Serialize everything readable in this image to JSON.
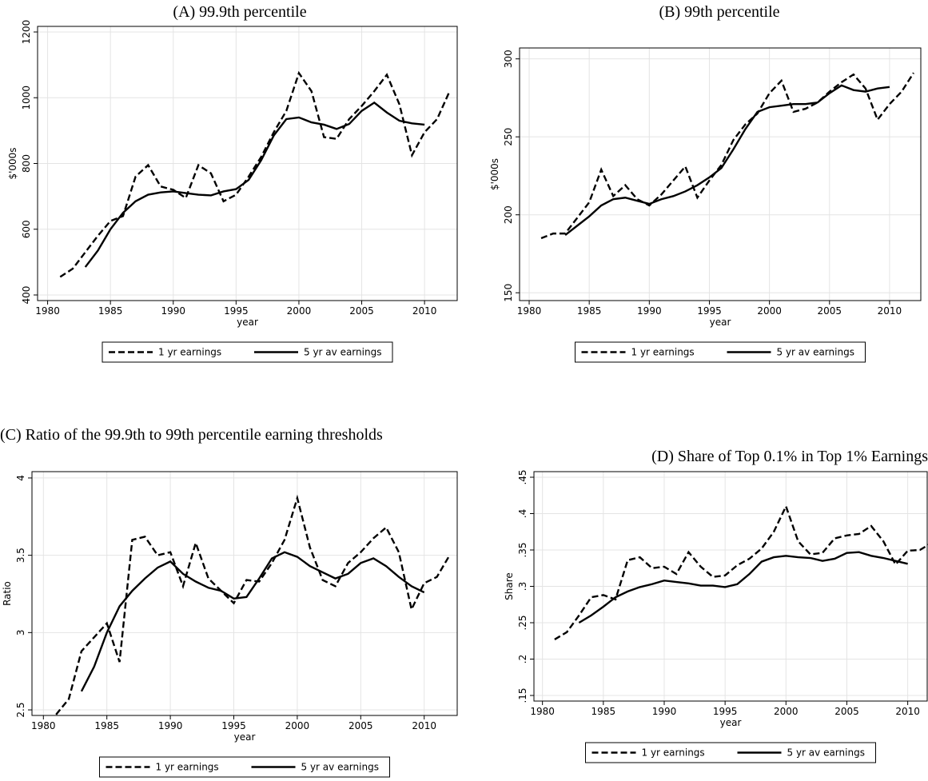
{
  "chart_data": [
    {
      "type": "line",
      "title": "(A) 99.9th percentile",
      "ylabel": "$'000s",
      "xlabel": "year",
      "x": [
        1981,
        1982,
        1983,
        1984,
        1985,
        1986,
        1987,
        1988,
        1989,
        1990,
        1991,
        1992,
        1993,
        1994,
        1995,
        1996,
        1997,
        1998,
        1999,
        2000,
        2001,
        2002,
        2003,
        2004,
        2005,
        2006,
        2007,
        2008,
        2009,
        2010,
        2011,
        2012
      ],
      "series": [
        {
          "name": "1 yr earnings",
          "color": "#000000",
          "style": "dashed",
          "values": [
            455,
            480,
            530,
            580,
            625,
            640,
            760,
            795,
            730,
            720,
            695,
            795,
            770,
            685,
            705,
            760,
            820,
            895,
            960,
            1075,
            1020,
            880,
            875,
            935,
            975,
            1020,
            1070,
            980,
            825,
            895,
            935,
            1020
          ]
        },
        {
          "name": "5 yr av earnings",
          "color": "#000000",
          "style": "solid",
          "values": [
            null,
            null,
            485,
            535,
            600,
            650,
            685,
            705,
            712,
            715,
            710,
            705,
            703,
            715,
            722,
            750,
            810,
            885,
            935,
            940,
            925,
            918,
            905,
            920,
            960,
            985,
            955,
            930,
            922,
            918,
            null,
            null
          ]
        }
      ],
      "xlim": [
        1979.2,
        2012.6
      ],
      "xticks": [
        1980,
        1985,
        1990,
        1995,
        2000,
        2005,
        2010
      ],
      "ylim": [
        383,
        1217
      ],
      "yticks": [
        400,
        600,
        800,
        1000,
        1200
      ],
      "grid": true
    },
    {
      "type": "line",
      "title": "(B) 99th percentile",
      "ylabel": "$'000s",
      "xlabel": "year",
      "x": [
        1981,
        1982,
        1983,
        1984,
        1985,
        1986,
        1987,
        1988,
        1989,
        1990,
        1991,
        1992,
        1993,
        1994,
        1995,
        1996,
        1997,
        1998,
        1999,
        2000,
        2001,
        2002,
        2003,
        2004,
        2005,
        2006,
        2007,
        2008,
        2009,
        2010,
        2011,
        2012
      ],
      "series": [
        {
          "name": "1 yr earnings",
          "color": "#000000",
          "style": "dashed",
          "values": [
            185,
            188,
            188,
            198,
            208,
            229,
            212,
            219,
            210,
            206,
            213,
            222,
            231,
            211,
            222,
            232,
            248,
            258,
            265,
            278,
            286,
            266,
            268,
            272,
            279,
            285,
            290,
            281,
            261,
            271,
            279,
            291
          ]
        },
        {
          "name": "5 yr av earnings",
          "color": "#000000",
          "style": "solid",
          "values": [
            null,
            null,
            187,
            193,
            199,
            206,
            210,
            211,
            209,
            207,
            210,
            212,
            215,
            219,
            224,
            230,
            242,
            255,
            266,
            269,
            270,
            271,
            271,
            272,
            278,
            283,
            280,
            279,
            281,
            282,
            null,
            null
          ]
        }
      ],
      "xlim": [
        1979.2,
        2012.6
      ],
      "xticks": [
        1980,
        1985,
        1990,
        1995,
        2000,
        2005,
        2010
      ],
      "ylim": [
        145,
        307
      ],
      "yticks": [
        150,
        200,
        250,
        300
      ],
      "grid": true
    },
    {
      "type": "line",
      "title": "(C) Ratio of the 99.9th to 99th percentile earning thresholds",
      "ylabel": "Ratio",
      "xlabel": "year",
      "x": [
        1981,
        1982,
        1983,
        1984,
        1985,
        1986,
        1987,
        1988,
        1989,
        1990,
        1991,
        1992,
        1993,
        1994,
        1995,
        1996,
        1997,
        1998,
        1999,
        2000,
        2001,
        2002,
        2003,
        2004,
        2005,
        2006,
        2007,
        2008,
        2009,
        2010,
        2011,
        2012
      ],
      "series": [
        {
          "name": "1 yr earnings",
          "color": "#000000",
          "style": "dashed",
          "values": [
            2.47,
            2.57,
            2.88,
            2.97,
            3.06,
            2.81,
            3.6,
            3.62,
            3.5,
            3.52,
            3.3,
            3.58,
            3.35,
            3.27,
            3.19,
            3.34,
            3.33,
            3.45,
            3.6,
            3.87,
            3.55,
            3.34,
            3.3,
            3.45,
            3.52,
            3.61,
            3.68,
            3.52,
            3.15,
            3.32,
            3.36,
            3.5
          ]
        },
        {
          "name": "5 yr av earnings",
          "color": "#000000",
          "style": "solid",
          "values": [
            null,
            null,
            2.62,
            2.78,
            3.0,
            3.17,
            3.27,
            3.35,
            3.42,
            3.46,
            3.38,
            3.33,
            3.29,
            3.27,
            3.22,
            3.23,
            3.35,
            3.48,
            3.52,
            3.49,
            3.43,
            3.39,
            3.35,
            3.38,
            3.45,
            3.48,
            3.43,
            3.36,
            3.3,
            3.26,
            null,
            null
          ]
        }
      ],
      "xlim": [
        1979.1,
        2012.6
      ],
      "xticks": [
        1980,
        1985,
        1990,
        1995,
        2000,
        2005,
        2010
      ],
      "ylim": [
        2.464,
        4.041
      ],
      "yticks": [
        2.5,
        3,
        3.5,
        4
      ],
      "grid": true
    },
    {
      "type": "line",
      "title": "(D) Share of Top 0.1% in Top 1% Earnings",
      "ylabel": "Share",
      "xlabel": "year",
      "x": [
        1981,
        1982,
        1983,
        1984,
        1985,
        1986,
        1987,
        1988,
        1989,
        1990,
        1991,
        1992,
        1993,
        1994,
        1995,
        1996,
        1997,
        1998,
        1999,
        2000,
        2001,
        2002,
        2003,
        2004,
        2005,
        2006,
        2007,
        2008,
        2009,
        2010,
        2011,
        2012
      ],
      "series": [
        {
          "name": "1 yr earnings",
          "color": "#000000",
          "style": "dashed",
          "values": [
            0.227,
            0.237,
            0.26,
            0.285,
            0.288,
            0.282,
            0.336,
            0.34,
            0.325,
            0.327,
            0.317,
            0.347,
            0.327,
            0.313,
            0.315,
            0.329,
            0.338,
            0.352,
            0.375,
            0.41,
            0.362,
            0.344,
            0.346,
            0.366,
            0.37,
            0.372,
            0.383,
            0.362,
            0.33,
            0.349,
            0.35,
            0.36
          ]
        },
        {
          "name": "5 yr av earnings",
          "color": "#000000",
          "style": "solid",
          "values": [
            null,
            null,
            0.25,
            0.26,
            0.272,
            0.285,
            0.293,
            0.299,
            0.303,
            0.308,
            0.306,
            0.304,
            0.301,
            0.301,
            0.299,
            0.303,
            0.317,
            0.334,
            0.34,
            0.342,
            0.34,
            0.339,
            0.335,
            0.338,
            0.346,
            0.347,
            0.342,
            0.339,
            0.335,
            0.331,
            null,
            null
          ]
        }
      ],
      "xlim": [
        1979.3,
        2011.6
      ],
      "xticks": [
        1980,
        1985,
        1990,
        1995,
        2000,
        2005,
        2010
      ],
      "ylim": [
        0.1423,
        0.4577
      ],
      "yticks": [
        {
          "value": 0.15,
          "label": ".15"
        },
        {
          "value": 0.2,
          "label": ".2"
        },
        {
          "value": 0.25,
          "label": ".25"
        },
        {
          "value": 0.3,
          "label": ".3"
        },
        {
          "value": 0.35,
          "label": ".35"
        },
        {
          "value": 0.4,
          "label": ".4"
        },
        {
          "value": 0.45,
          "label": ".45"
        }
      ],
      "grid": true
    }
  ]
}
